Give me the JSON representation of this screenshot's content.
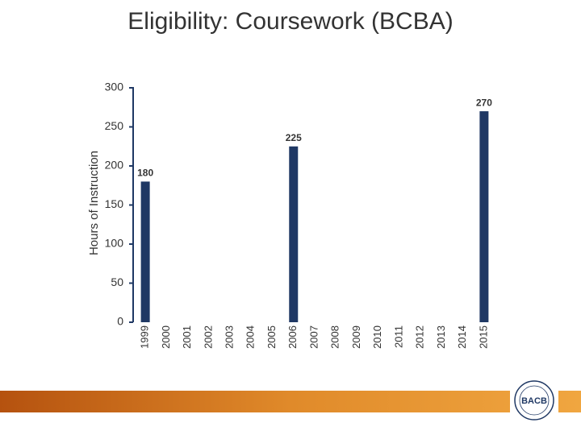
{
  "chart_data": {
    "type": "bar",
    "title": "Eligibility: Coursework (BCBA)",
    "y_label": "Hours of Instruction",
    "categories": [
      "1999",
      "2000",
      "2001",
      "2002",
      "2003",
      "2004",
      "2005",
      "2006",
      "2007",
      "2008",
      "2009",
      "2010",
      "2011",
      "2012",
      "2013",
      "2014",
      "2015"
    ],
    "values": [
      180,
      null,
      null,
      null,
      null,
      null,
      null,
      225,
      null,
      null,
      null,
      null,
      null,
      null,
      null,
      null,
      270
    ],
    "color": "#1f3864",
    "ylim": [
      0,
      300
    ],
    "yticks": [
      0,
      50,
      100,
      150,
      200,
      250,
      300
    ],
    "grid": false
  },
  "logo": {
    "text": "BACB"
  }
}
